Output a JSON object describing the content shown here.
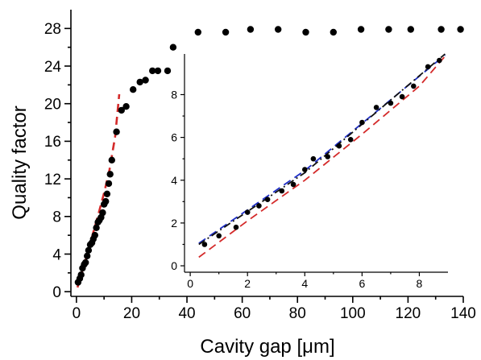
{
  "chart_data": [
    {
      "type": "scatter",
      "xlabel": "Cavity gap [μm]",
      "ylabel": "Quality factor",
      "xlim": [
        -2,
        140
      ],
      "ylim": [
        -0.5,
        30
      ],
      "xticks": [
        0,
        20,
        40,
        60,
        80,
        100,
        120,
        140
      ],
      "xtick_labels": [
        "0",
        "20",
        "40",
        "60",
        "80",
        "100",
        "120",
        "140"
      ],
      "yticks": [
        0,
        4,
        8,
        12,
        16,
        20,
        24,
        28
      ],
      "ytick_labels": [
        "0",
        "4",
        "8",
        "12",
        "16",
        "20",
        "24",
        "28"
      ],
      "grid": false,
      "series": [
        {
          "kind": "scatter",
          "color": "#000000",
          "x": [
            0.6,
            1.2,
            1.7,
            2.2,
            2.8,
            3.3,
            3.9,
            4.4,
            5.0,
            5.6,
            6.1,
            6.7,
            7.2,
            7.8,
            8.3,
            8.9,
            9.5,
            10.0,
            10.6,
            11.1,
            11.7,
            12.2,
            12.8,
            14.5,
            16.3,
            18.0,
            20.5,
            23.0,
            25.0,
            27.5,
            29.5,
            33.0,
            35.0,
            44.0,
            54.0,
            63.0,
            73.0,
            83.0,
            93.0,
            103.0,
            113.0,
            121.0,
            132.0,
            139.0
          ],
          "y": [
            1.0,
            1.4,
            1.8,
            2.5,
            2.9,
            3.1,
            3.8,
            4.4,
            5.0,
            5.2,
            5.6,
            6.0,
            6.8,
            7.4,
            7.6,
            7.9,
            8.4,
            9.3,
            9.6,
            10.4,
            11.5,
            12.5,
            14.0,
            17.0,
            19.3,
            19.7,
            21.5,
            22.3,
            22.5,
            23.5,
            23.5,
            23.5,
            26.0,
            27.6,
            27.6,
            27.9,
            27.9,
            27.6,
            27.6,
            27.9,
            27.9,
            27.9,
            27.9,
            27.9
          ]
        },
        {
          "kind": "line",
          "style": "dashed",
          "color": "#d42a2a",
          "x": [
            0.4,
            2,
            4,
            6,
            8,
            10,
            12,
            14,
            15.5
          ],
          "y": [
            0.45,
            2.1,
            4.0,
            6.2,
            8.3,
            10.5,
            13.0,
            16.5,
            21.0
          ]
        }
      ]
    },
    {
      "type": "scatter",
      "inset": true,
      "xlim": [
        -0.2,
        9
      ],
      "ylim": [
        -0.3,
        9.9
      ],
      "xticks": [
        0,
        2,
        4,
        6,
        8
      ],
      "xtick_labels": [
        "0",
        "2",
        "4",
        "6",
        "8"
      ],
      "yticks": [
        0,
        2,
        4,
        6,
        8
      ],
      "ytick_labels": [
        "0",
        "2",
        "4",
        "6",
        "8"
      ],
      "grid": false,
      "series": [
        {
          "kind": "scatter",
          "color": "#000000",
          "x": [
            0.5,
            1.0,
            1.6,
            2.0,
            2.4,
            2.7,
            3.2,
            3.6,
            4.0,
            4.3,
            4.8,
            5.2,
            5.6,
            6.0,
            6.5,
            7.0,
            7.4,
            7.8,
            8.3,
            8.7
          ],
          "y": [
            1.0,
            1.4,
            1.8,
            2.5,
            2.8,
            3.1,
            3.5,
            3.8,
            4.5,
            5.0,
            5.1,
            5.6,
            5.9,
            6.7,
            7.4,
            7.6,
            7.9,
            8.4,
            9.3,
            9.6
          ]
        },
        {
          "kind": "line",
          "style": "dashed",
          "color": "#d42a2a",
          "x": [
            0.3,
            2.0,
            4.0,
            6.0,
            8.0,
            8.9
          ],
          "y": [
            0.4,
            2.1,
            4.0,
            6.15,
            8.4,
            9.8
          ]
        },
        {
          "kind": "line",
          "style": "dashed",
          "color": "#1f2fc8",
          "x": [
            0.3,
            4.0,
            8.9
          ],
          "y": [
            1.05,
            4.45,
            9.85
          ]
        },
        {
          "kind": "line",
          "style": "dashdot",
          "color": "#111111",
          "x": [
            0.3,
            4.0,
            8.9
          ],
          "y": [
            1.0,
            4.35,
            9.9
          ]
        }
      ]
    }
  ]
}
